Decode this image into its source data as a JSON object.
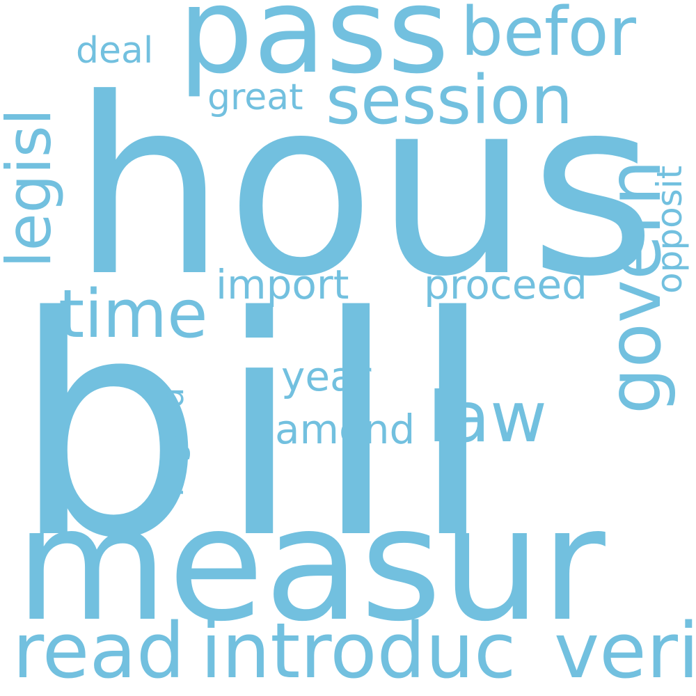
{
  "word_cloud": {
    "color": "#72c0df",
    "background": "#ffffff",
    "words": [
      {
        "text": "bill",
        "orientation": "horizontal"
      },
      {
        "text": "hous",
        "orientation": "horizontal"
      },
      {
        "text": "measur",
        "orientation": "horizontal"
      },
      {
        "text": "pass",
        "orientation": "horizontal"
      },
      {
        "text": "session",
        "orientation": "horizontal"
      },
      {
        "text": "befor",
        "orientation": "horizontal"
      },
      {
        "text": "legisl",
        "orientation": "vertical"
      },
      {
        "text": "govern",
        "orientation": "vertical"
      },
      {
        "text": "time",
        "orientation": "horizontal"
      },
      {
        "text": "read",
        "orientation": "horizontal"
      },
      {
        "text": "introduc",
        "orientation": "horizontal"
      },
      {
        "text": "veri",
        "orientation": "horizontal"
      },
      {
        "text": "law",
        "orientation": "horizontal"
      },
      {
        "text": "import",
        "orientation": "horizontal"
      },
      {
        "text": "proceed",
        "orientation": "horizontal"
      },
      {
        "text": "opposit",
        "orientation": "vertical"
      },
      {
        "text": "great",
        "orientation": "horizontal"
      },
      {
        "text": "deal",
        "orientation": "horizontal"
      },
      {
        "text": "year",
        "orientation": "horizontal"
      },
      {
        "text": "amend",
        "orientation": "horizontal"
      },
      {
        "text": "regard",
        "orientation": "vertical"
      }
    ]
  }
}
